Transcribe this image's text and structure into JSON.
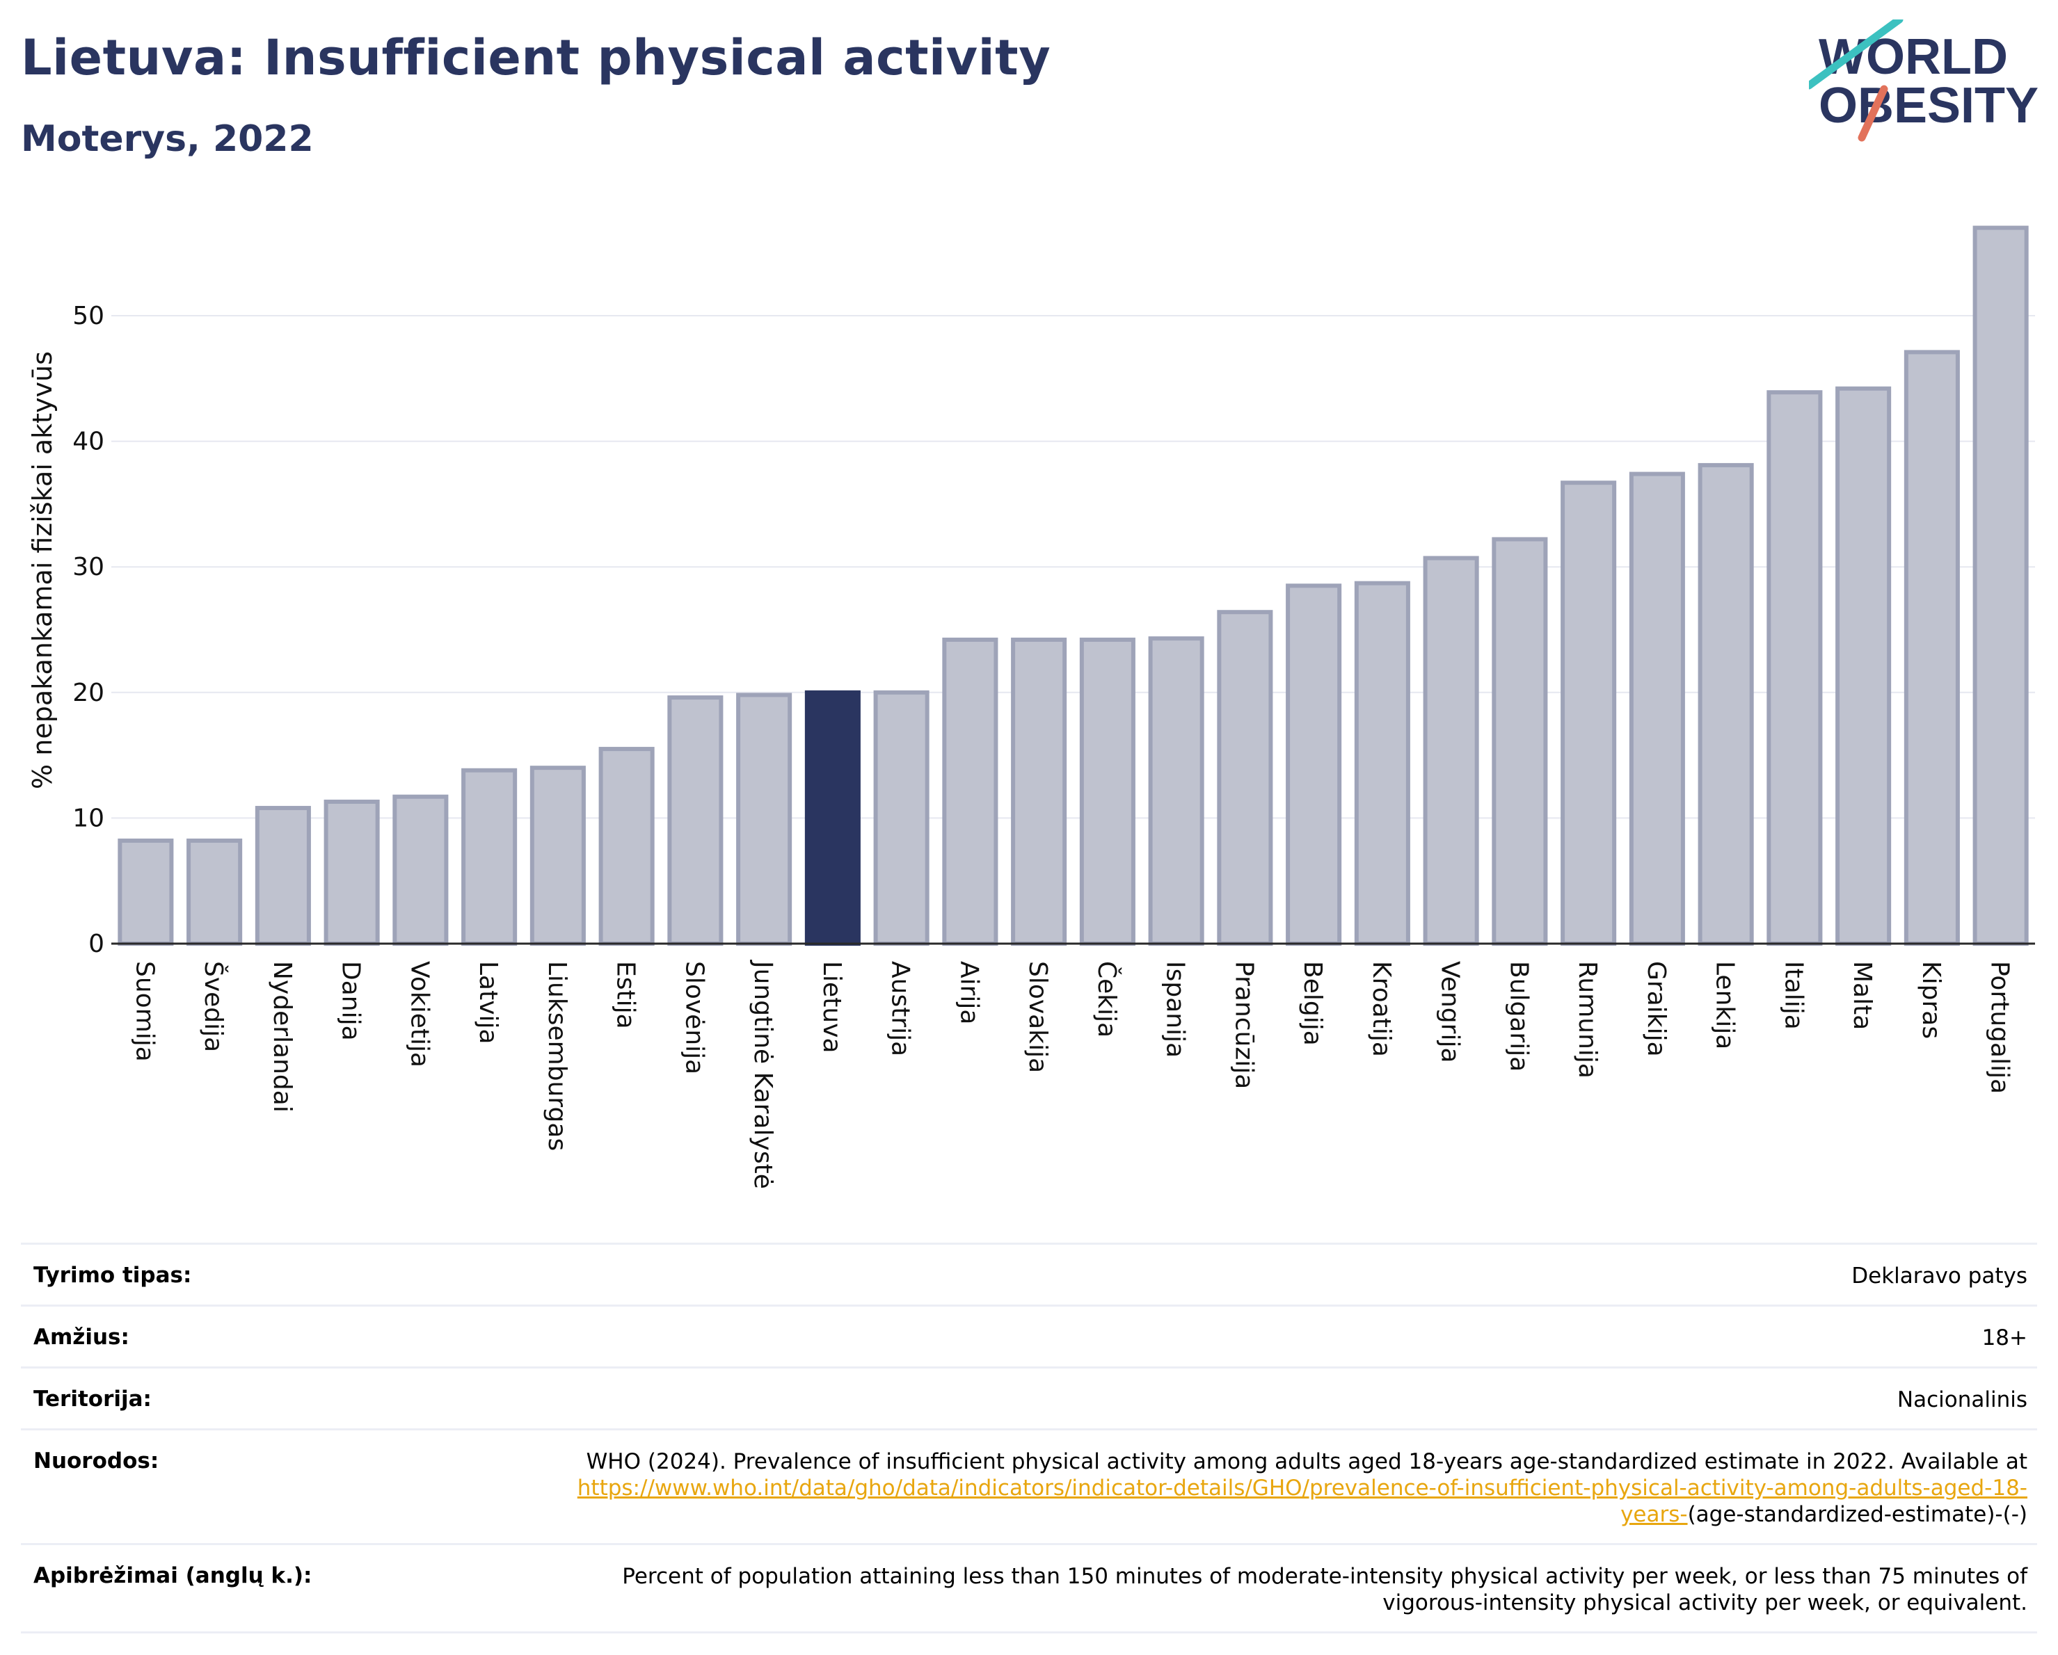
{
  "header": {
    "title": "Lietuva: Insufficient physical activity",
    "subtitle": "Moterys, 2022",
    "logo_line1": "WORLD",
    "logo_line2": "OBESITY"
  },
  "colors": {
    "bar_default": "#bfc2cf",
    "bar_stroke": "#9ea3b8",
    "bar_highlight": "#2a3560",
    "title": "#2a3560",
    "link": "#e8a60f"
  },
  "chart_data": {
    "type": "bar",
    "ylabel": "% nepakankamai fiziškai aktyvūs",
    "ylim": [
      0,
      58
    ],
    "yticks": [
      0,
      10,
      20,
      30,
      40,
      50
    ],
    "grid": true,
    "highlight": "Lietuva",
    "categories": [
      "Suomija",
      "Švedija",
      "Nyderlandai",
      "Danija",
      "Vokietija",
      "Latvija",
      "Liuksemburgas",
      "Estija",
      "Slovėnija",
      "Jungtinė Karalystė",
      "Lietuva",
      "Austrija",
      "Airija",
      "Slovakija",
      "Čekija",
      "Ispanija",
      "Prancūzija",
      "Belgija",
      "Kroatija",
      "Vengrija",
      "Bulgarija",
      "Rumunija",
      "Graikija",
      "Lenkija",
      "Italija",
      "Malta",
      "Kipras",
      "Portugalija"
    ],
    "values": [
      8.2,
      8.2,
      10.8,
      11.3,
      11.7,
      13.8,
      14.0,
      15.5,
      19.6,
      19.8,
      20.0,
      20.0,
      24.2,
      24.2,
      24.2,
      24.3,
      26.4,
      28.5,
      28.7,
      30.7,
      32.2,
      36.7,
      37.4,
      38.1,
      43.9,
      44.2,
      47.1,
      57.0
    ]
  },
  "info": {
    "rows": [
      {
        "label": "Tyrimo tipas:",
        "value": "Deklaravo patys"
      },
      {
        "label": "Amžius:",
        "value": "18+"
      },
      {
        "label": "Teritorija:",
        "value": "Nacionalinis"
      }
    ],
    "references": {
      "label": "Nuorodos:",
      "text": "WHO (2024). Prevalence of insufficient physical activity among adults aged 18-years age-standardized estimate in 2022. Available at",
      "link": "https://www.who.int/data/gho/data/indicators/indicator-details/GHO/prevalence-of-insufficient-physical-activity-among-adults-aged-18-years-",
      "suffix": "(age-standardized-estimate)-(-)"
    },
    "definitions": {
      "label": "Apibrėžimai (anglų k.):",
      "value": "Percent of population attaining less than 150 minutes of moderate-intensity physical activity per week, or less than 75 minutes of vigorous-intensity physical activity per week, or equivalent."
    }
  }
}
